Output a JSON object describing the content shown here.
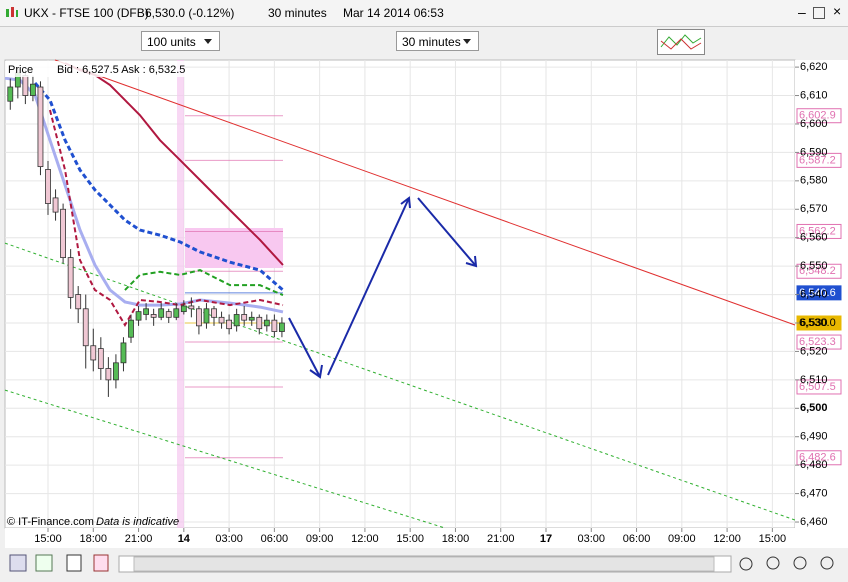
{
  "window": {
    "title": "UKX - FTSE 100 (DFB)",
    "price": "6,530.0 (-0.12%)",
    "interval": "30 minutes",
    "date": "Mar 14 2014 06:53"
  },
  "toolbar": {
    "units": "100 units",
    "timeframe": "30 minutes"
  },
  "legend": {
    "price": "Price",
    "quote": "Bid : 6,527.5  Ask : 6,532.5"
  },
  "footer": {
    "source": "© IT-Finance.com",
    "note": "Data is indicative"
  },
  "chart_data": {
    "type": "candlestick",
    "xlim": [
      -2.85,
      49.5
    ],
    "ylim": [
      6457.9,
      6622.5
    ],
    "grid": true,
    "up_color": "#55bb55",
    "down_color": "#f0c8d4",
    "xticks": [
      {
        "value": 0,
        "label": "15:00"
      },
      {
        "value": 3,
        "label": "18:00"
      },
      {
        "value": 6,
        "label": "21:00"
      },
      {
        "value": 9,
        "label": "14"
      },
      {
        "value": 12,
        "label": "03:00"
      },
      {
        "value": 15,
        "label": "06:00"
      },
      {
        "value": 18,
        "label": "09:00"
      },
      {
        "value": 21,
        "label": "12:00"
      },
      {
        "value": 24,
        "label": "15:00"
      },
      {
        "value": 27,
        "label": "18:00"
      },
      {
        "value": 30,
        "label": "21:00"
      },
      {
        "value": 33,
        "label": "17"
      },
      {
        "value": 36,
        "label": "03:00"
      },
      {
        "value": 39,
        "label": "06:00"
      },
      {
        "value": 42,
        "label": "09:00"
      },
      {
        "value": 45,
        "label": "12:00"
      },
      {
        "value": 48,
        "label": "15:00"
      }
    ],
    "yticks": [
      {
        "value": 6460,
        "label": "6,460"
      },
      {
        "value": 6470,
        "label": "6,470"
      },
      {
        "value": 6480,
        "label": "6,480"
      },
      {
        "value": 6490,
        "label": "6,490"
      },
      {
        "value": 6500,
        "label": "6,500"
      },
      {
        "value": 6510,
        "label": "6,510"
      },
      {
        "value": 6520,
        "label": "6,520"
      },
      {
        "value": 6530,
        "label": "6,530"
      },
      {
        "value": 6540,
        "label": "6,540"
      },
      {
        "value": 6550,
        "label": "6,550"
      },
      {
        "value": 6560,
        "label": "6,560"
      },
      {
        "value": 6570,
        "label": "6,570"
      },
      {
        "value": 6580,
        "label": "6,580"
      },
      {
        "value": 6590,
        "label": "6,590"
      },
      {
        "value": 6600,
        "label": "6,600"
      },
      {
        "value": 6610,
        "label": "6,610"
      },
      {
        "value": 6620,
        "label": "6,620"
      }
    ],
    "x": [
      -2.5,
      -2,
      -1.5,
      -1,
      -0.5,
      0,
      0.5,
      1,
      1.5,
      2,
      2.5,
      3,
      3.5,
      4,
      4.5,
      5,
      5.5,
      6,
      6.5,
      7,
      7.5,
      8,
      8.5,
      9,
      9.5,
      10,
      10.5,
      11,
      11.5,
      12,
      12.5,
      13,
      13.5,
      14,
      14.5,
      15,
      15.5
    ],
    "open": [
      6608,
      6613,
      6617,
      6610,
      6613,
      6584,
      6574,
      6570,
      6553,
      6540,
      6535,
      6522,
      6521,
      6514,
      6510,
      6516,
      6525,
      6531,
      6533,
      6533,
      6532,
      6534,
      6532,
      6534,
      6536,
      6535,
      6530,
      6535,
      6532,
      6531,
      6529,
      6533,
      6531,
      6532,
      6529,
      6531,
      6527
    ],
    "high": [
      6616,
      6620,
      6619,
      6617,
      6615,
      6587,
      6577,
      6572,
      6556,
      6543,
      6540,
      6528,
      6525,
      6518,
      6519,
      6525,
      6533,
      6536,
      6537,
      6535,
      6537,
      6535,
      6537,
      6538,
      6539,
      6536,
      6537,
      6536,
      6534,
      6533,
      6535,
      6536,
      6534,
      6533,
      6533,
      6533,
      6532
    ],
    "low": [
      6605,
      6609,
      6607,
      6608,
      6582,
      6568,
      6566,
      6551,
      6535,
      6530,
      6514,
      6513,
      6510,
      6504,
      6507,
      6513,
      6523,
      6529,
      6531,
      6529,
      6531,
      6530,
      6531,
      6533,
      6532,
      6526,
      6528,
      6529,
      6528,
      6526,
      6527,
      6529,
      6529,
      6526,
      6527,
      6525,
      6525
    ],
    "close": [
      6613,
      6618,
      6610,
      6614,
      6585,
      6572,
      6569,
      6553,
      6539,
      6535,
      6522,
      6517,
      6514,
      6510,
      6516,
      6523,
      6531,
      6534,
      6535,
      6532,
      6535,
      6532,
      6535,
      6536,
      6535,
      6529,
      6535,
      6532,
      6530,
      6528,
      6533,
      6531,
      6532,
      6528,
      6531,
      6527,
      6530
    ],
    "lines_x": [
      -2.85,
      -1.86,
      -0.86,
      0.13,
      1.13,
      2.12,
      3.11,
      4.11,
      5.1,
      6.09,
      7.42,
      8.75,
      10.07,
      12.06,
      14.05,
      15.57
    ],
    "lines": [
      {
        "color": "#a8aef0",
        "width": 3,
        "dash": false,
        "values": [
          6616.1,
          6615.4,
          6610.2,
          6594.3,
          6578.5,
          6562.7,
          6550.4,
          6541.6,
          6537.4,
          6536.3,
          6536.3,
          6536.7,
          6538.1,
          6537.0,
          6535.6,
          6533.9
        ]
      },
      {
        "color": "#2050d0",
        "width": 3,
        "dash": true,
        "values": [
          null,
          null,
          6614.4,
          6608.4,
          6594.3,
          6583.8,
          6576.8,
          6571.5,
          6566.2,
          6562.7,
          6560.9,
          6558.5,
          6555.0,
          6551.4,
          6548.6,
          6541.6
        ]
      },
      {
        "color": "#b01840",
        "width": 2,
        "dash": false,
        "values": [
          null,
          null,
          null,
          null,
          6621.4,
          6618.9,
          6617.2,
          6613.7,
          6608.4,
          6603.1,
          6594.3,
          6587.3,
          6580.3,
          6569.7,
          6559.2,
          6550.4
        ]
      },
      {
        "color": "#b01840",
        "width": 2,
        "dash": true,
        "values": [
          null,
          null,
          null,
          6604.9,
          6583.8,
          6552.1,
          6541.6,
          6538.1,
          6529.3,
          6538.1,
          6537.4,
          6536.3,
          6538.1,
          6536.3,
          6538.1,
          6536.3
        ]
      },
      {
        "color": "#22a022",
        "width": 2,
        "dash": true,
        "values": [
          null,
          null,
          null,
          null,
          null,
          null,
          null,
          null,
          6541.6,
          6546.9,
          6548.0,
          6546.9,
          6548.6,
          6543.3,
          6543.3,
          6539.8
        ]
      }
    ],
    "trendlines": [
      {
        "color": "#e03030",
        "dash": false,
        "x": [
          0.46,
          49.5
        ],
        "values": [
          6622.5,
          6529.3
        ]
      },
      {
        "color": "#30b030",
        "dash": true,
        "x": [
          -2.85,
          49.5
        ],
        "values": [
          6558.1,
          6460.7
        ]
      },
      {
        "color": "#30b030",
        "dash": true,
        "x": [
          -2.85,
          26.3
        ],
        "values": [
          6506.4,
          6457.9
        ]
      }
    ],
    "levels": [
      {
        "value": 6602.9,
        "label": "6,602.9",
        "color": "#e070b0"
      },
      {
        "value": 6587.2,
        "label": "6,587.2",
        "color": "#e070b0"
      },
      {
        "value": 6562.2,
        "label": "6,562.2",
        "color": "#e070b0"
      },
      {
        "value": 6548.2,
        "label": "6,548.2",
        "color": "#e070b0"
      },
      {
        "value": 6540.6,
        "label": "6,540.6",
        "color": "#2050d0"
      },
      {
        "value": 6530.0,
        "label": "6,530.0",
        "color": "#e8b800"
      },
      {
        "value": 6523.3,
        "label": "6,523.3",
        "color": "#e070b0"
      },
      {
        "value": 6507.5,
        "label": "6,507.5",
        "color": "#e070b0"
      },
      {
        "value": 6482.6,
        "label": "6,482.6",
        "color": "#e070b0"
      }
    ]
  }
}
